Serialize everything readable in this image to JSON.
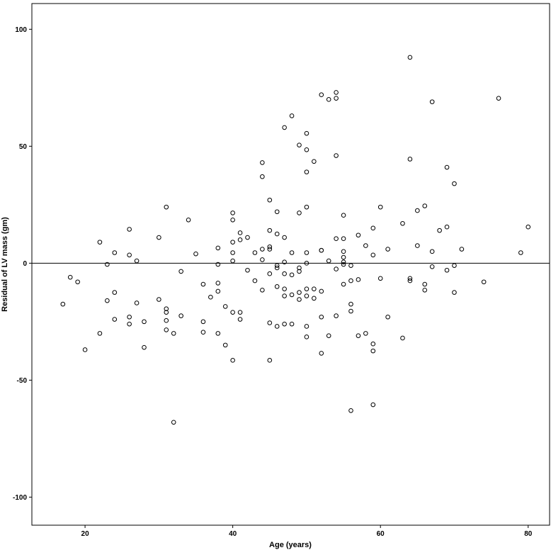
{
  "chart_data": {
    "type": "scatter",
    "title": "",
    "xlabel": "Age (years)",
    "ylabel": "Residual of LV mass (gm)",
    "xlim": [
      12.8,
      82.9
    ],
    "ylim": [
      -112,
      111
    ],
    "xticks": [
      20,
      40,
      60,
      80
    ],
    "yticks": [
      100,
      50,
      0,
      -50,
      -100
    ],
    "reference_line_y": 0,
    "grid": false,
    "legend": "none",
    "series": [
      {
        "marker": "hollow-circle",
        "color": "#000000",
        "points": [
          [
            17,
            -17.5
          ],
          [
            18,
            -6
          ],
          [
            19,
            -8
          ],
          [
            20,
            -37
          ],
          [
            22,
            9
          ],
          [
            22,
            -30
          ],
          [
            23,
            -0.5
          ],
          [
            23,
            -16
          ],
          [
            24,
            4.5
          ],
          [
            24,
            -12.5
          ],
          [
            24,
            -24
          ],
          [
            26,
            14.5
          ],
          [
            26,
            3.5
          ],
          [
            26,
            -23
          ],
          [
            26,
            -26
          ],
          [
            27,
            1
          ],
          [
            27,
            -17
          ],
          [
            28,
            -25
          ],
          [
            28,
            -36
          ],
          [
            30,
            11
          ],
          [
            30,
            -15.5
          ],
          [
            31,
            24
          ],
          [
            31,
            -19.5
          ],
          [
            31,
            -21
          ],
          [
            31,
            -24.5
          ],
          [
            31,
            -28.5
          ],
          [
            32,
            -30
          ],
          [
            32,
            -68
          ],
          [
            33,
            -3.5
          ],
          [
            33,
            -22.5
          ],
          [
            34,
            18.5
          ],
          [
            35,
            4
          ],
          [
            36,
            -9
          ],
          [
            36,
            -25
          ],
          [
            36,
            -29.5
          ],
          [
            37,
            -14.5
          ],
          [
            38,
            6.5
          ],
          [
            38,
            -0.5
          ],
          [
            38,
            -8.5
          ],
          [
            38,
            -12
          ],
          [
            38,
            -30
          ],
          [
            39,
            -18.5
          ],
          [
            39,
            -35
          ],
          [
            40,
            21.5
          ],
          [
            40,
            18.5
          ],
          [
            40,
            9
          ],
          [
            40,
            4.5
          ],
          [
            40,
            1
          ],
          [
            40,
            -21
          ],
          [
            40,
            -41.5
          ],
          [
            41,
            13
          ],
          [
            41,
            10
          ],
          [
            41,
            -21
          ],
          [
            41,
            -24
          ],
          [
            42,
            11
          ],
          [
            42,
            -3
          ],
          [
            43,
            4.5
          ],
          [
            43,
            -7.5
          ],
          [
            44,
            43
          ],
          [
            44,
            37
          ],
          [
            44,
            6
          ],
          [
            44,
            1.5
          ],
          [
            44,
            -11.5
          ],
          [
            45,
            27
          ],
          [
            45,
            14
          ],
          [
            45,
            7
          ],
          [
            45,
            6
          ],
          [
            45,
            -4.5
          ],
          [
            45,
            -25.5
          ],
          [
            45,
            -41.5
          ],
          [
            46,
            22
          ],
          [
            46,
            12.5
          ],
          [
            46,
            -1
          ],
          [
            46,
            -2
          ],
          [
            46,
            -10
          ],
          [
            46,
            -27
          ],
          [
            47,
            58
          ],
          [
            47,
            11
          ],
          [
            47,
            0.5
          ],
          [
            47,
            -4.5
          ],
          [
            47,
            -11
          ],
          [
            47,
            -14
          ],
          [
            47,
            -26
          ],
          [
            48,
            63
          ],
          [
            48,
            4.5
          ],
          [
            48,
            -5
          ],
          [
            48,
            -13.5
          ],
          [
            48,
            -26
          ],
          [
            49,
            50.5
          ],
          [
            49,
            21.5
          ],
          [
            49,
            -2
          ],
          [
            49,
            -3.5
          ],
          [
            49,
            -12.5
          ],
          [
            49,
            -15.5
          ],
          [
            50,
            55.5
          ],
          [
            50,
            48.5
          ],
          [
            50,
            39
          ],
          [
            50,
            24
          ],
          [
            50,
            4.5
          ],
          [
            50,
            0
          ],
          [
            50,
            -11
          ],
          [
            50,
            -14
          ],
          [
            50,
            -27
          ],
          [
            50,
            -31.5
          ],
          [
            51,
            43.5
          ],
          [
            51,
            -11
          ],
          [
            51,
            -15
          ],
          [
            52,
            72
          ],
          [
            52,
            5.5
          ],
          [
            52,
            5.5
          ],
          [
            52,
            -12
          ],
          [
            52,
            -23
          ],
          [
            52,
            -38.5
          ],
          [
            53,
            70
          ],
          [
            53,
            1
          ],
          [
            53,
            -31
          ],
          [
            54,
            73
          ],
          [
            54,
            70.5
          ],
          [
            54,
            46
          ],
          [
            54,
            10.5
          ],
          [
            54,
            -2.5
          ],
          [
            54,
            -22.5
          ],
          [
            55,
            20.5
          ],
          [
            55,
            10.5
          ],
          [
            55,
            5
          ],
          [
            55,
            2.5
          ],
          [
            55,
            0.5
          ],
          [
            55,
            -0.5
          ],
          [
            55,
            -9
          ],
          [
            56,
            -1
          ],
          [
            56,
            -7.5
          ],
          [
            56,
            -17.5
          ],
          [
            56,
            -20.5
          ],
          [
            56,
            -63
          ],
          [
            57,
            12
          ],
          [
            57,
            -7
          ],
          [
            57,
            -31
          ],
          [
            58,
            7.5
          ],
          [
            58,
            -30
          ],
          [
            59,
            15
          ],
          [
            59,
            3.5
          ],
          [
            59,
            -34.5
          ],
          [
            59,
            -37.5
          ],
          [
            59,
            -60.5
          ],
          [
            60,
            24
          ],
          [
            60,
            -6.5
          ],
          [
            61,
            6
          ],
          [
            61,
            -23
          ],
          [
            63,
            17
          ],
          [
            63,
            -32
          ],
          [
            64,
            88
          ],
          [
            64,
            44.5
          ],
          [
            64,
            -6.5
          ],
          [
            64,
            -7.5
          ],
          [
            65,
            22.5
          ],
          [
            65,
            7.5
          ],
          [
            66,
            24.5
          ],
          [
            66,
            -9
          ],
          [
            66,
            -11.5
          ],
          [
            67,
            69
          ],
          [
            67,
            5
          ],
          [
            67,
            -1.5
          ],
          [
            68,
            14
          ],
          [
            69,
            41
          ],
          [
            69,
            15.5
          ],
          [
            69,
            -3
          ],
          [
            70,
            34
          ],
          [
            70,
            -1
          ],
          [
            70,
            -12.5
          ],
          [
            71,
            6
          ],
          [
            74,
            -8
          ],
          [
            76,
            70.5
          ],
          [
            79,
            4.5
          ],
          [
            80,
            15.5
          ]
        ]
      }
    ]
  }
}
